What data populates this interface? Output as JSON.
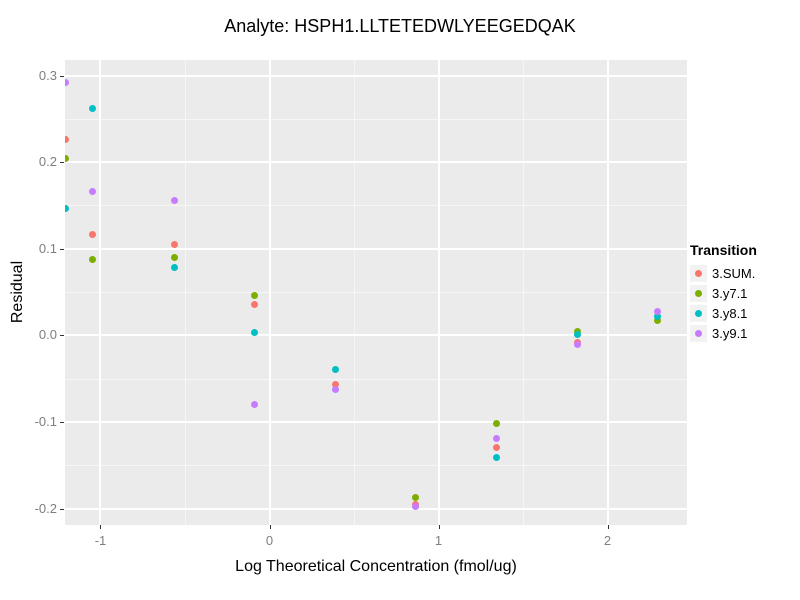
{
  "chart_data": {
    "type": "scatter",
    "title": "Analyte: HSPH1.LLTETEDWLYEEGEDQAK",
    "xlabel": "Log Theoretical Concentration (fmol/ug)",
    "ylabel": "Residual",
    "legend_title": "Transition",
    "legend_position": "right",
    "grid": true,
    "xlim": [
      -1.21,
      2.47
    ],
    "ylim": [
      -0.219,
      0.318
    ],
    "x_ticks": [
      {
        "value": -1,
        "label": "-1"
      },
      {
        "value": 0,
        "label": "0"
      },
      {
        "value": 1,
        "label": "1"
      },
      {
        "value": 2,
        "label": "2"
      }
    ],
    "y_ticks": [
      {
        "value": 0.3,
        "label": "0.3"
      },
      {
        "value": 0.2,
        "label": "0.2"
      },
      {
        "value": 0.1,
        "label": "0.1"
      },
      {
        "value": 0.0,
        "label": "0.0"
      },
      {
        "value": -0.1,
        "label": "-0.1"
      },
      {
        "value": -0.2,
        "label": "-0.2"
      }
    ],
    "x_minor": [
      -0.5,
      0.5,
      1.5
    ],
    "y_minor": [
      0.25,
      0.15,
      0.05,
      -0.05,
      -0.15
    ],
    "colors": {
      "panel_bg": "#EBEBEB",
      "grid": "#FFFFFF",
      "axis_text": "#7E7E7E",
      "tick_mark": "#333333",
      "legend_key_bg": "#F2F2F2",
      "text": "#000000"
    },
    "series": [
      {
        "name": "3.SUM.",
        "color": "#F8766D",
        "points": [
          [
            -1.205,
            0.226
          ],
          [
            -1.046,
            0.117
          ],
          [
            -0.565,
            0.105
          ],
          [
            -0.086,
            0.036
          ],
          [
            0.392,
            -0.057
          ],
          [
            0.861,
            -0.195
          ],
          [
            1.344,
            -0.13
          ],
          [
            1.821,
            -0.008
          ]
        ]
      },
      {
        "name": "3.y7.1",
        "color": "#7CAE00",
        "points": [
          [
            -1.205,
            0.204
          ],
          [
            -1.046,
            0.088
          ],
          [
            -0.565,
            0.09
          ],
          [
            -0.086,
            0.046
          ],
          [
            0.861,
            -0.187
          ],
          [
            1.344,
            -0.102
          ],
          [
            1.821,
            0.005
          ],
          [
            2.294,
            0.017
          ]
        ]
      },
      {
        "name": "3.y8.1",
        "color": "#00BFC4",
        "points": [
          [
            -1.205,
            0.146
          ],
          [
            -1.046,
            0.262
          ],
          [
            -0.565,
            0.078
          ],
          [
            -0.086,
            0.003
          ],
          [
            0.392,
            -0.039
          ],
          [
            1.344,
            -0.141
          ],
          [
            1.821,
            0.001
          ],
          [
            2.294,
            0.022
          ]
        ]
      },
      {
        "name": "3.y9.1",
        "color": "#C77CFF",
        "points": [
          [
            -1.205,
            0.292
          ],
          [
            -1.046,
            0.166
          ],
          [
            -0.565,
            0.156
          ],
          [
            -0.086,
            -0.08
          ],
          [
            0.392,
            -0.063
          ],
          [
            0.861,
            -0.198
          ],
          [
            1.344,
            -0.119
          ],
          [
            1.821,
            -0.011
          ],
          [
            2.294,
            0.027
          ]
        ]
      }
    ]
  }
}
